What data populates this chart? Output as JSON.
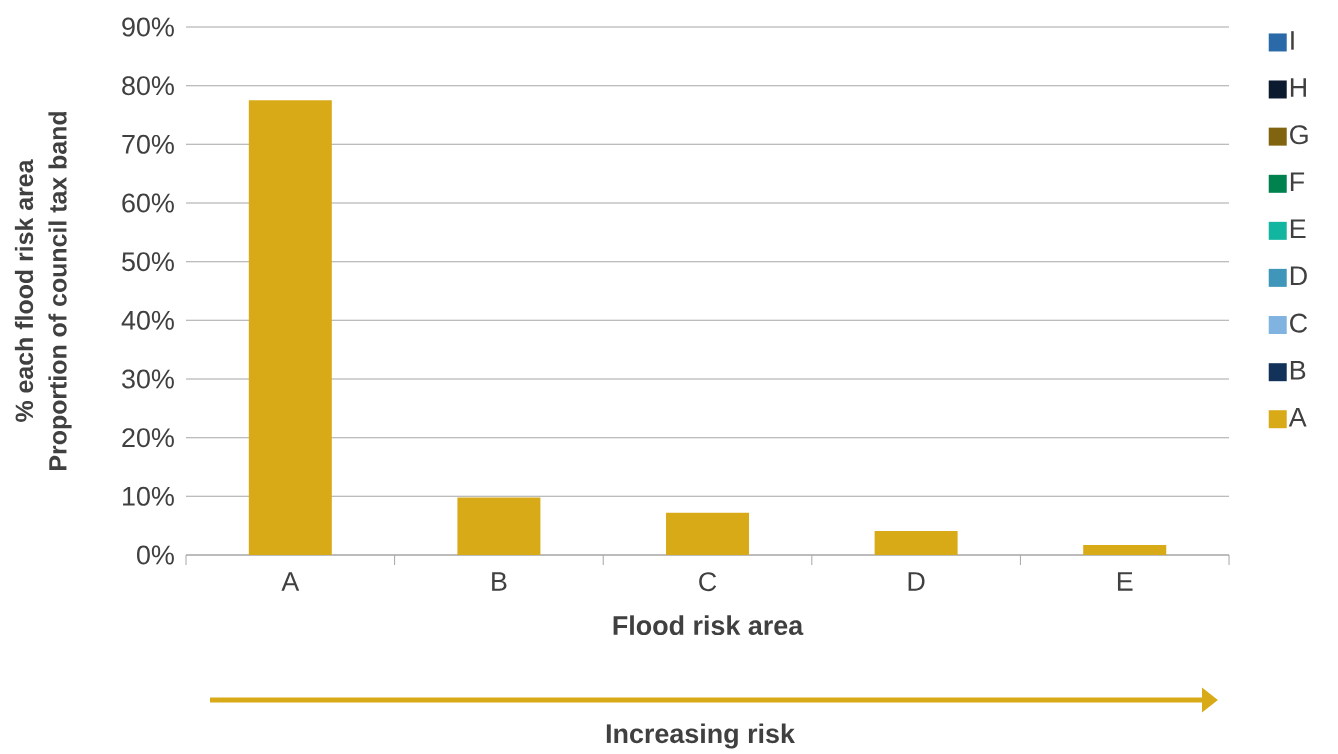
{
  "chart_data": {
    "type": "bar",
    "xlabel": "Flood risk area",
    "ylabel": "Proportion of council tax band",
    "annotations": [
      "% each flood risk area",
      "Increasing risk"
    ],
    "categories": [
      "A",
      "B",
      "C",
      "D",
      "E"
    ],
    "series": [
      {
        "name": "A",
        "color": "#d8aa18",
        "values": [
          77.5,
          9.8,
          7.2,
          4.1,
          1.7
        ]
      },
      {
        "name": "B",
        "color": "#12325a",
        "values": [
          null,
          null,
          null,
          null,
          null
        ]
      },
      {
        "name": "C",
        "color": "#80b3e0",
        "values": [
          null,
          null,
          null,
          null,
          null
        ]
      },
      {
        "name": "D",
        "color": "#4096b8",
        "values": [
          null,
          null,
          null,
          null,
          null
        ]
      },
      {
        "name": "E",
        "color": "#12b5a0",
        "values": [
          null,
          null,
          null,
          null,
          null
        ]
      },
      {
        "name": "F",
        "color": "#00824e",
        "values": [
          null,
          null,
          null,
          null,
          null
        ]
      },
      {
        "name": "G",
        "color": "#806410",
        "values": [
          null,
          null,
          null,
          null,
          null
        ]
      },
      {
        "name": "H",
        "color": "#0c1a30",
        "values": [
          null,
          null,
          null,
          null,
          null
        ]
      },
      {
        "name": "I",
        "color": "#2a6aa8",
        "values": [
          null,
          null,
          null,
          null,
          null
        ]
      }
    ],
    "ylim": [
      0,
      90
    ],
    "yticks": [
      {
        "value": 0,
        "label": "0%"
      },
      {
        "value": 10,
        "label": "10%"
      },
      {
        "value": 20,
        "label": "20%"
      },
      {
        "value": 30,
        "label": "30%"
      },
      {
        "value": 40,
        "label": "40%"
      },
      {
        "value": 50,
        "label": "50%"
      },
      {
        "value": 60,
        "label": "60%"
      },
      {
        "value": 70,
        "label": "70%"
      },
      {
        "value": 80,
        "label": "80%"
      },
      {
        "value": 90,
        "label": "90%"
      }
    ],
    "grid": "y",
    "legend": "right"
  }
}
